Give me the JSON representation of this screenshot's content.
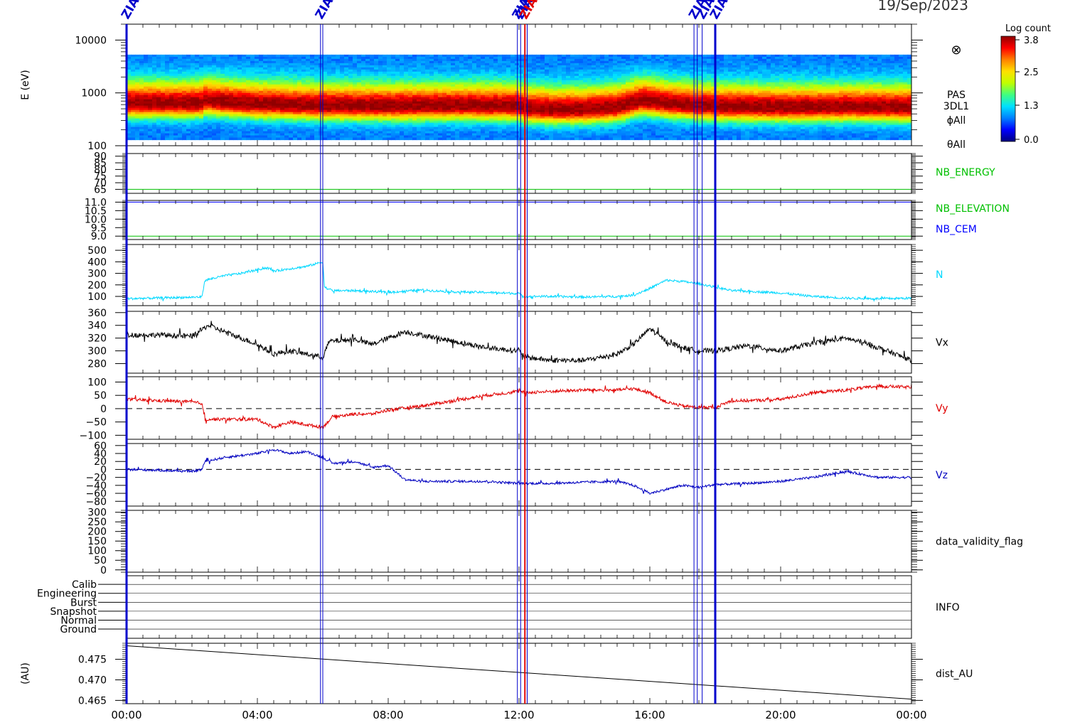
{
  "date_label": "19/Sep/2023",
  "colorbar": {
    "title": "Log count",
    "ticks": [
      "3.8",
      "2.5",
      "1.3",
      "0.0"
    ],
    "stops": [
      "#000080",
      "#0000ff",
      "#0080ff",
      "#00e0ff",
      "#40ff80",
      "#c0ff00",
      "#ffe000",
      "#ff8000",
      "#ff0000",
      "#900000"
    ]
  },
  "chart_data": [
    {
      "type": "heatmap",
      "id": "spectrogram",
      "ylabel": "E (eV)",
      "yscale": "log",
      "ylim": [
        100,
        20000
      ],
      "yticks": [
        {
          "v": 100,
          "label": "100"
        },
        {
          "v": 1000,
          "label": "1000"
        },
        {
          "v": 10000,
          "label": "10000"
        }
      ],
      "labels": [
        "PAS",
        "3DL1",
        "ϕAll",
        "θAll"
      ],
      "symbol": "⊗",
      "energy_range": [
        130,
        5300
      ],
      "peak_energy_ev": [
        [
          0,
          620
        ],
        [
          2.3,
          620
        ],
        [
          2.4,
          700
        ],
        [
          3,
          650
        ],
        [
          4,
          600
        ],
        [
          5,
          580
        ],
        [
          6,
          560
        ],
        [
          8,
          550
        ],
        [
          10,
          560
        ],
        [
          12,
          550
        ],
        [
          12.2,
          500
        ],
        [
          13,
          470
        ],
        [
          14,
          480
        ],
        [
          15,
          520
        ],
        [
          15.8,
          700
        ],
        [
          16.5,
          620
        ],
        [
          17.5,
          560
        ],
        [
          18,
          540
        ],
        [
          20,
          520
        ],
        [
          22,
          530
        ],
        [
          24,
          520
        ]
      ]
    },
    {
      "type": "line",
      "id": "nb_energy",
      "ylim": [
        62,
        92
      ],
      "yticks": [
        65,
        70,
        75,
        80,
        85,
        90
      ],
      "labels": [
        {
          "text": "NB_ENERGY",
          "color": "#00c000"
        }
      ],
      "series": [
        {
          "color": "#00c000",
          "x": [
            0,
            24
          ],
          "y": [
            65,
            65
          ]
        }
      ]
    },
    {
      "type": "line",
      "id": "nb_elevation",
      "ylim": [
        8.8,
        11.1
      ],
      "yticks": [
        9.0,
        9.5,
        10.0,
        10.5,
        11.0
      ],
      "labels": [
        {
          "text": "NB_ELEVATION",
          "color": "#00c000"
        },
        {
          "text": "NB_CEM",
          "color": "#0000ff"
        }
      ],
      "series": [
        {
          "color": "#00c000",
          "x": [
            0,
            24
          ],
          "y": [
            9.0,
            9.0
          ]
        },
        {
          "color": "#0000ff",
          "x": [
            0,
            24
          ],
          "y": [
            11.0,
            11.0
          ]
        }
      ]
    },
    {
      "type": "line",
      "id": "density",
      "ylim": [
        20,
        550
      ],
      "yticks": [
        100,
        200,
        300,
        400,
        500
      ],
      "labels": [
        {
          "text": "N",
          "color": "#00d8ff"
        }
      ],
      "series": [
        {
          "color": "#00d8ff",
          "noise": 10,
          "x": [
            0,
            2.3,
            2.4,
            3,
            3.5,
            4.3,
            4.5,
            5,
            5.5,
            6,
            6.05,
            6.3,
            7,
            8,
            9,
            10,
            11,
            12,
            12.1,
            13,
            14,
            15,
            15.5,
            16,
            16.5,
            17,
            17.5,
            18,
            18.5,
            19,
            20,
            21,
            22,
            23,
            24
          ],
          "y": [
            80,
            95,
            240,
            280,
            300,
            350,
            320,
            340,
            360,
            400,
            180,
            150,
            150,
            135,
            155,
            140,
            135,
            125,
            100,
            100,
            95,
            100,
            110,
            170,
            240,
            230,
            210,
            180,
            150,
            145,
            130,
            100,
            85,
            80,
            85
          ]
        }
      ]
    },
    {
      "type": "line",
      "id": "vx",
      "ylim": [
        265,
        362
      ],
      "yticks": [
        280,
        300,
        320,
        340,
        360
      ],
      "labels": [
        {
          "text": "Vx",
          "color": "#000000"
        }
      ],
      "series": [
        {
          "color": "#000000",
          "noise": 4,
          "x": [
            0,
            1,
            2,
            2.5,
            3,
            3.5,
            4,
            4.5,
            5,
            5.5,
            6,
            6.2,
            7,
            7.5,
            8,
            8.5,
            9,
            10,
            11,
            12,
            12.2,
            13,
            14,
            15,
            15.5,
            16,
            16.5,
            17,
            17.5,
            18,
            19,
            20,
            21,
            22,
            23,
            24
          ],
          "y": [
            325,
            325,
            323,
            340,
            330,
            320,
            310,
            295,
            300,
            295,
            290,
            315,
            318,
            310,
            320,
            330,
            325,
            315,
            305,
            300,
            290,
            285,
            285,
            295,
            310,
            335,
            315,
            305,
            300,
            300,
            308,
            300,
            312,
            320,
            305,
            285
          ]
        }
      ]
    },
    {
      "type": "line",
      "id": "vy",
      "ylim": [
        -115,
        120
      ],
      "yticks": [
        -100,
        -50,
        0,
        50,
        100
      ],
      "labels": [
        {
          "text": "Vy",
          "color": "#e00000"
        }
      ],
      "dashed_zero": true,
      "series": [
        {
          "color": "#e00000",
          "noise": 6,
          "x": [
            0,
            1,
            2,
            2.3,
            2.4,
            3,
            4,
            4.5,
            5,
            5.5,
            6,
            6.3,
            7,
            7.5,
            8,
            9,
            10,
            11,
            12,
            12.2,
            13,
            14,
            15,
            15.5,
            16,
            16.5,
            17,
            17.5,
            18,
            18.5,
            19,
            20,
            21,
            22,
            23,
            24
          ],
          "y": [
            35,
            30,
            25,
            20,
            -40,
            -40,
            -40,
            -70,
            -50,
            -60,
            -70,
            -30,
            -20,
            -20,
            -5,
            10,
            30,
            50,
            65,
            60,
            65,
            70,
            70,
            75,
            60,
            25,
            10,
            5,
            5,
            30,
            30,
            35,
            60,
            70,
            85,
            80
          ]
        }
      ]
    },
    {
      "type": "line",
      "id": "vz",
      "ylim": [
        -92,
        65
      ],
      "yticks": [
        -80,
        -60,
        -40,
        -20,
        0,
        20,
        40,
        60
      ],
      "labels": [
        {
          "text": "Vz",
          "color": "#0000c0"
        }
      ],
      "dashed_zero": true,
      "series": [
        {
          "color": "#0000c0",
          "noise": 3,
          "x": [
            0,
            1,
            2,
            2.3,
            2.4,
            3,
            4,
            4.5,
            5,
            5.5,
            6,
            6.3,
            7,
            7.5,
            8,
            8.5,
            9,
            10,
            11,
            12,
            13,
            14,
            15,
            15.5,
            16,
            16.5,
            17,
            17.5,
            18,
            19,
            20,
            21,
            22,
            23,
            24
          ],
          "y": [
            0,
            -2,
            -5,
            0,
            20,
            30,
            40,
            50,
            40,
            45,
            30,
            15,
            20,
            5,
            10,
            -25,
            -30,
            -30,
            -30,
            -35,
            -35,
            -32,
            -30,
            -40,
            -60,
            -50,
            -40,
            -45,
            -38,
            -35,
            -30,
            -20,
            -5,
            -20,
            -20
          ]
        }
      ]
    },
    {
      "type": "line",
      "id": "validity",
      "ylim": [
        -12,
        310
      ],
      "yticks": [
        0,
        50,
        100,
        150,
        200,
        250,
        300
      ],
      "labels": [
        {
          "text": "data_validity_flag",
          "color": "#000000"
        }
      ],
      "series": []
    },
    {
      "type": "table",
      "id": "info",
      "levels": [
        "Calib",
        "Engineering",
        "Burst",
        "Snapshot",
        "Normal",
        "Ground"
      ],
      "labels": [
        {
          "text": "INFO",
          "color": "#000000"
        }
      ]
    },
    {
      "type": "line",
      "id": "dist",
      "ylabel": "(AU)",
      "ylim": [
        0.4642,
        0.4789
      ],
      "yticks": [
        {
          "v": 0.465,
          "label": "0.465"
        },
        {
          "v": 0.47,
          "label": "0.470"
        },
        {
          "v": 0.475,
          "label": "0.475"
        }
      ],
      "labels": [
        {
          "text": "dist_AU",
          "color": "#000000"
        }
      ],
      "series": [
        {
          "color": "#000000",
          "x": [
            0,
            24
          ],
          "y": [
            0.4783,
            0.4653
          ]
        }
      ]
    }
  ],
  "x_axis": {
    "xlim": [
      0,
      24
    ],
    "ticks": [
      {
        "v": 0,
        "label": "00:00"
      },
      {
        "v": 4,
        "label": "04:00"
      },
      {
        "v": 8,
        "label": "08:00"
      },
      {
        "v": 12,
        "label": "12:00"
      },
      {
        "v": 16,
        "label": "16:00"
      },
      {
        "v": 20,
        "label": "20:00"
      },
      {
        "v": 24,
        "label": "00:00"
      }
    ],
    "minor_step": 0.5
  },
  "event_lines": [
    {
      "t": 0.0,
      "color": "#0000cc",
      "width": 3,
      "label": "ZIAS"
    },
    {
      "t": 5.93,
      "color": "#0000cc",
      "width": 1,
      "label": "ZIAS"
    },
    {
      "t": 6.0,
      "color": "#0000cc",
      "width": 1,
      "label": ""
    },
    {
      "t": 11.95,
      "color": "#0000cc",
      "width": 1,
      "label": "ZIA"
    },
    {
      "t": 12.05,
      "color": "#0000cc",
      "width": 1,
      "label": "ZIA"
    },
    {
      "t": 12.18,
      "color": "#e00000",
      "width": 2,
      "label": "ZIA"
    },
    {
      "t": 12.25,
      "color": "#0000cc",
      "width": 1,
      "label": ""
    },
    {
      "t": 17.35,
      "color": "#0000cc",
      "width": 1,
      "label": "ZIA"
    },
    {
      "t": 17.45,
      "color": "#0000cc",
      "width": 1,
      "label": ""
    },
    {
      "t": 17.6,
      "color": "#0000cc",
      "width": 1,
      "label": "ZIA"
    },
    {
      "t": 18.0,
      "color": "#0000cc",
      "width": 3,
      "label": "ZIAS"
    }
  ]
}
